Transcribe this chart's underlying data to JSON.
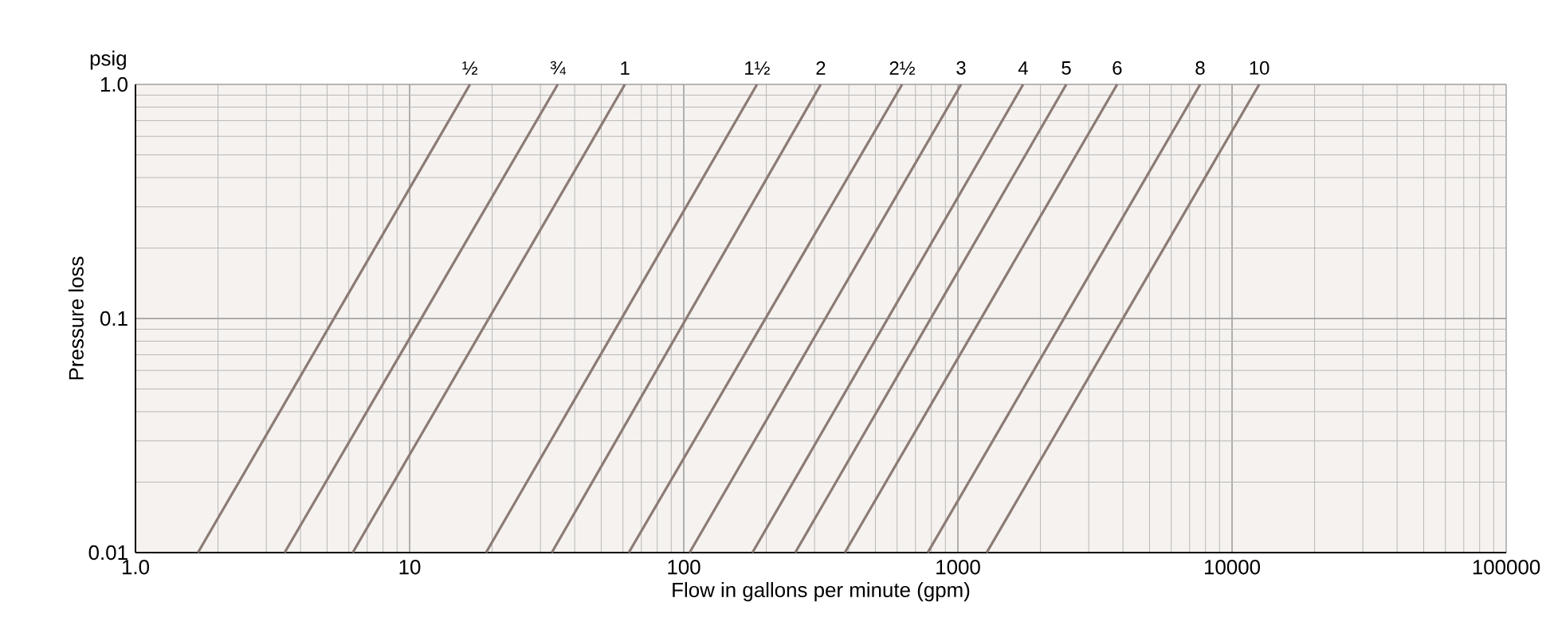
{
  "chart_data": {
    "type": "line",
    "xlabel": "Flow in gallons per minute (gpm)",
    "ylabel": "Pressure loss",
    "annotations": [
      "psig"
    ],
    "log": "xy",
    "grid": true,
    "xlim": [
      1,
      100000
    ],
    "ylim": [
      0.01,
      1.0
    ],
    "xticks": [
      {
        "value": 1,
        "label": "1.0"
      },
      10,
      100,
      1000,
      10000,
      100000
    ],
    "yticks": [
      0.01,
      0.1,
      {
        "value": 1,
        "label": "1.0"
      }
    ],
    "series": [
      {
        "name": "½",
        "color": "#8c7b75",
        "x": [
          1.69,
          16.6
        ],
        "values": [
          0.01,
          1.0
        ]
      },
      {
        "name": "¾",
        "color": "#8c7b75",
        "x": [
          3.5,
          34.7
        ],
        "values": [
          0.01,
          1.0
        ]
      },
      {
        "name": "1",
        "color": "#8c7b75",
        "x": [
          6.2,
          61
        ],
        "values": [
          0.01,
          1.0
        ]
      },
      {
        "name": "1½",
        "color": "#8c7b75",
        "x": [
          19,
          185
        ],
        "values": [
          0.01,
          1.0
        ]
      },
      {
        "name": "2",
        "color": "#8c7b75",
        "x": [
          33,
          316
        ],
        "values": [
          0.01,
          1.0
        ]
      },
      {
        "name": "2½",
        "color": "#8c7b75",
        "x": [
          63,
          626
        ],
        "values": [
          0.01,
          1.0
        ]
      },
      {
        "name": "3",
        "color": "#8c7b75",
        "x": [
          105,
          1027
        ],
        "values": [
          0.01,
          1.0
        ]
      },
      {
        "name": "4",
        "color": "#8c7b75",
        "x": [
          178,
          1730
        ],
        "values": [
          0.01,
          1.0
        ]
      },
      {
        "name": "5",
        "color": "#8c7b75",
        "x": [
          255,
          2485
        ],
        "values": [
          0.01,
          1.0
        ]
      },
      {
        "name": "6",
        "color": "#8c7b75",
        "x": [
          387,
          3810
        ],
        "values": [
          0.01,
          1.0
        ]
      },
      {
        "name": "8",
        "color": "#8c7b75",
        "x": [
          776,
          7650
        ],
        "values": [
          0.01,
          1.0
        ]
      },
      {
        "name": "10",
        "color": "#8c7b75",
        "x": [
          1273,
          12560
        ],
        "values": [
          0.01,
          1.0
        ]
      }
    ]
  }
}
